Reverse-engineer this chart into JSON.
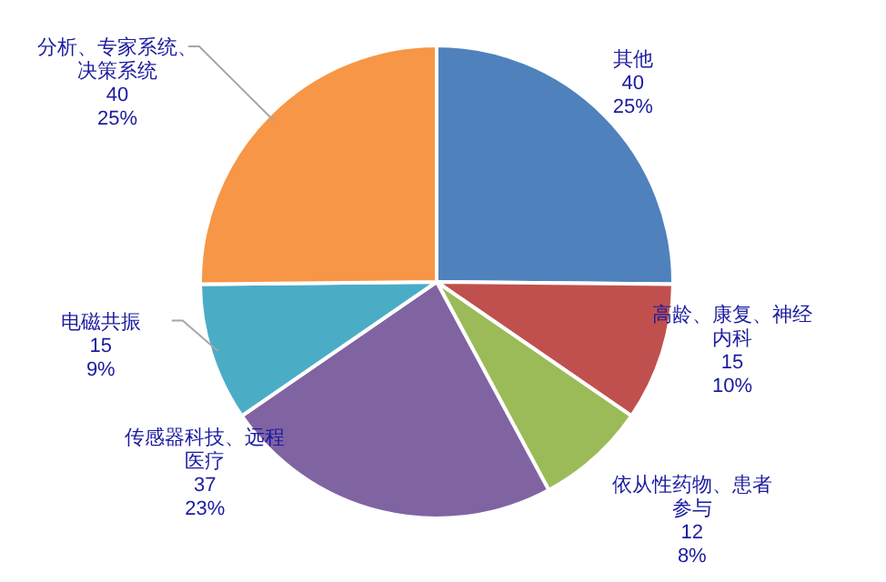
{
  "chart_data": {
    "type": "pie",
    "categories": [
      "其他",
      "高龄、康复、神经内科",
      "依从性药物、患者参与",
      "传感器科技、远程医疗",
      "电磁共振",
      "分析、专家系统、决策系统"
    ],
    "values": [
      40,
      15,
      12,
      37,
      15,
      40
    ],
    "value_labels": [
      "40\n25%",
      "15\n10%",
      "12\n8%",
      "37\n23%",
      "15\n9%",
      "40\n25%"
    ],
    "colors": [
      "#4f81bd",
      "#c0504d",
      "#9bbb59",
      "#8064a2",
      "#4bacc6",
      "#f79646"
    ]
  }
}
